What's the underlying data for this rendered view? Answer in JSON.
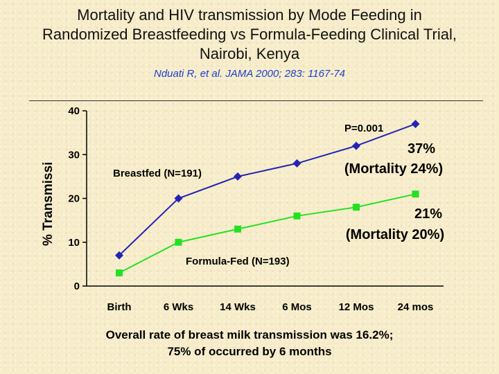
{
  "slide": {
    "title_lines": [
      "Mortality and HIV transmission by Mode Feeding in",
      "Randomized Breastfeeding vs Formula-Feeding Clinical Trial,",
      "Nairobi, Kenya"
    ],
    "citation": "Nduati R, et al.  JAMA 2000; 283: 1167-74",
    "footer_lines": [
      "Overall rate of breast milk transmission was 16.2%;",
      "75% of occurred by 6 months"
    ]
  },
  "chart_data": {
    "type": "line",
    "ylabel": "% Transmissi",
    "categories": [
      "Birth",
      "6 Wks",
      "14 Wks",
      "6 Mos",
      "12 Mos",
      "24 mos"
    ],
    "yticks": [
      0,
      10,
      20,
      30,
      40
    ],
    "ylim": [
      0,
      40
    ],
    "grid": false,
    "series": [
      {
        "name": "Breastfed (N=191)",
        "color": "#2424b4",
        "marker": "diamond",
        "values": [
          7,
          20,
          25,
          28,
          32,
          37
        ]
      },
      {
        "name": "Formula-Fed (N=193)",
        "color": "#22e222",
        "marker": "square",
        "values": [
          3,
          10,
          13,
          16,
          18,
          21
        ]
      }
    ],
    "annotations": {
      "p_value": "P=0.001",
      "breastfed_end": [
        "37%",
        "(Mortality 24%)"
      ],
      "formula_end": [
        "21%",
        "(Mortality 20%)"
      ]
    }
  }
}
